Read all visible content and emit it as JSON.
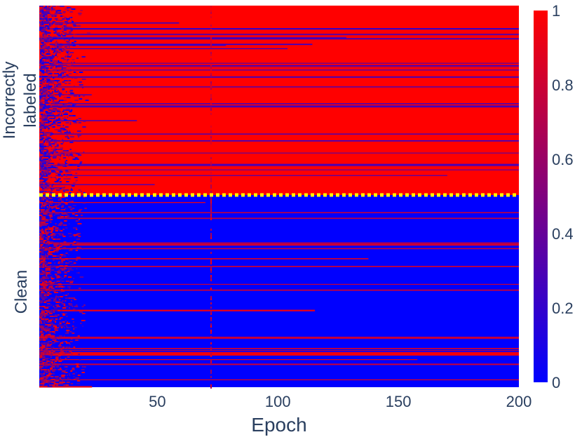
{
  "chart_data": {
    "type": "heatmap",
    "xlabel": "Epoch",
    "x_range": [
      1,
      200
    ],
    "x_ticks": [
      50,
      100,
      150,
      200
    ],
    "x_tick_labels": [
      "50",
      "100",
      "150",
      "200"
    ],
    "row_groups": [
      {
        "label_lines": [
          "Incorrectly",
          "labeled"
        ],
        "dominant_value": 1
      },
      {
        "label_lines": [
          "Clean"
        ],
        "dominant_value": 0
      }
    ],
    "separator": {
      "style": "dotted",
      "color": "#ffff00"
    },
    "colorscale": [
      [
        0,
        "#0000ff"
      ],
      [
        1,
        "#ff0000"
      ]
    ],
    "zlim": [
      0,
      1
    ],
    "colorbar_ticks": [
      0,
      0.2,
      0.4,
      0.6,
      0.8,
      1
    ],
    "colorbar_tick_labels": [
      "0",
      "0.2",
      "0.4",
      "0.6",
      "0.8",
      "1"
    ]
  }
}
